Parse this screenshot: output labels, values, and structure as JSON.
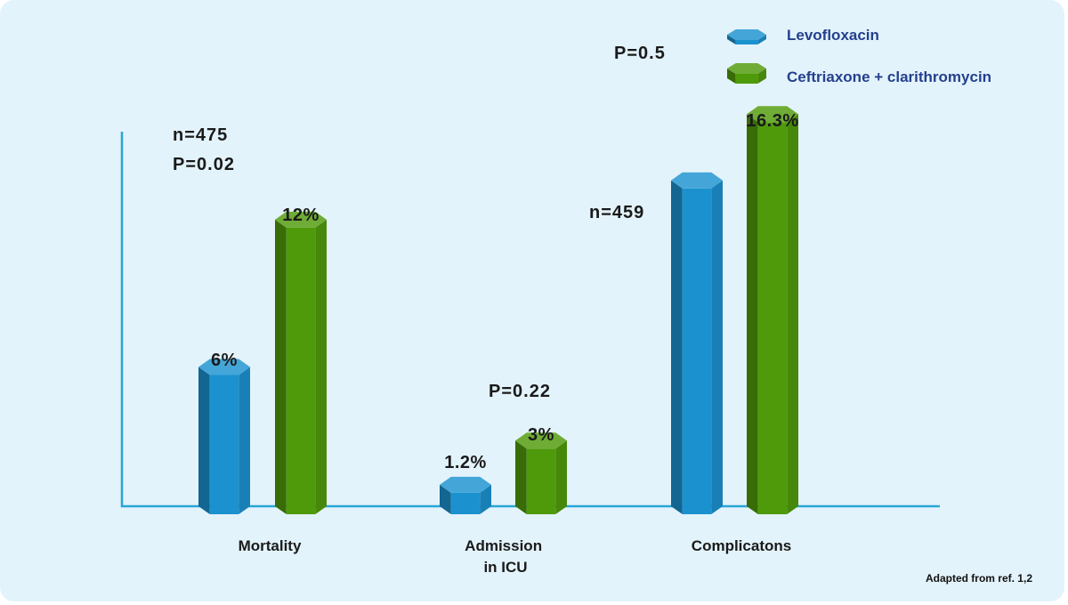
{
  "chart_data": {
    "type": "bar",
    "categories": [
      "Mortality",
      "Admission\nin ICU",
      "Complicatons"
    ],
    "series": [
      {
        "name": "Levofloxacin",
        "values": [
          6,
          1.2,
          13.6
        ],
        "labels": [
          "6%",
          "1.2%",
          ""
        ]
      },
      {
        "name": "Ceftriaxone + clarithromycin",
        "values": [
          12,
          3,
          16.3
        ],
        "labels": [
          "12%",
          "3%",
          "16.3%"
        ]
      }
    ],
    "colors": {
      "Levofloxacin": "#1b92cf",
      "Ceftriaxone + clarithromycin": "#4f9a0a",
      "axis": "#26a6d6"
    },
    "annotations": {
      "mortality_n": "n=475",
      "mortality_p": "P=0.02",
      "icu_p": "P=0.22",
      "complications_n": "n=459",
      "complications_p": "P=0.5"
    },
    "source": "Adapted from ref. 1,2",
    "xlabel": "",
    "ylabel": "",
    "ylim": [
      0,
      19.5
    ],
    "legend_position": "top-right"
  }
}
